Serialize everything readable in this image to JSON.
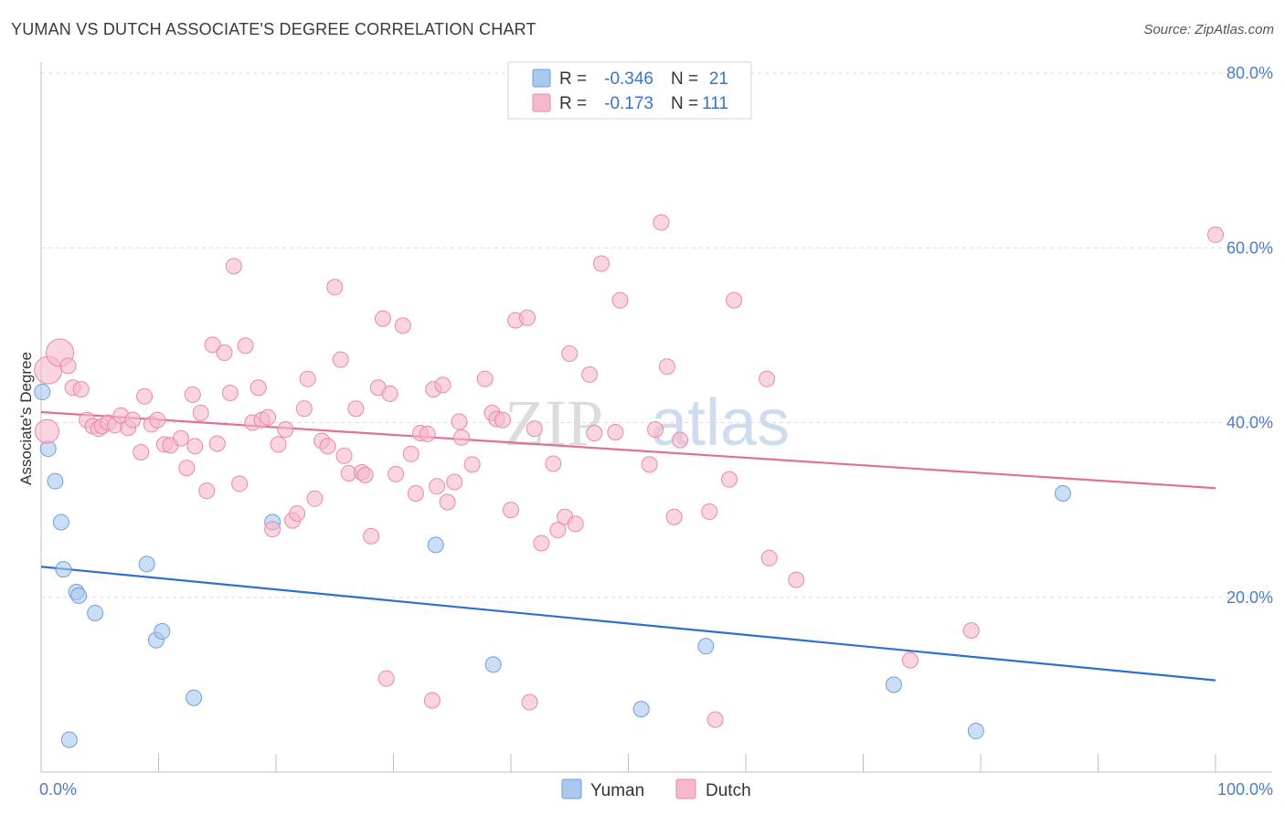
{
  "header": {
    "title": "YUMAN VS DUTCH ASSOCIATE'S DEGREE CORRELATION CHART",
    "source": "Source: ZipAtlas.com"
  },
  "watermark": {
    "part1": "ZIP",
    "part2": "atlas"
  },
  "legend": {
    "rows": [
      {
        "r_label": "R =",
        "r_value": "-0.346",
        "n_label": "N =",
        "n_value": "21",
        "color": "#aac8ef"
      },
      {
        "r_label": "R =",
        "r_value": "-0.173",
        "n_label": "N =",
        "n_value": "111",
        "color": "#f6b8cb"
      }
    ]
  },
  "chart_data": {
    "type": "scatter",
    "title": "YUMAN VS DUTCH ASSOCIATE'S DEGREE CORRELATION CHART",
    "xlabel": "",
    "ylabel": "Associate's Degree",
    "xlim": [
      0,
      100
    ],
    "ylim": [
      0,
      80
    ],
    "x_tick_labels": [
      "0.0%",
      "100.0%"
    ],
    "y_ticks": [
      20,
      40,
      60,
      80
    ],
    "y_tick_labels": [
      "20.0%",
      "40.0%",
      "60.0%",
      "80.0%"
    ],
    "grid": true,
    "legend_position": "top-center",
    "series": [
      {
        "name": "Yuman",
        "color": "#aac8ef",
        "stroke": "#6f9fdc",
        "trend_color": "#2f6fd0",
        "trend": [
          [
            0,
            23.5
          ],
          [
            100,
            10.5
          ]
        ],
        "points": [
          [
            0.1,
            43.5
          ],
          [
            0.6,
            37.0
          ],
          [
            1.2,
            33.3
          ],
          [
            1.7,
            28.6
          ],
          [
            1.9,
            23.2
          ],
          [
            3.0,
            20.6
          ],
          [
            3.2,
            20.2
          ],
          [
            4.6,
            18.2
          ],
          [
            9.0,
            23.8
          ],
          [
            9.8,
            15.1
          ],
          [
            10.3,
            16.1
          ],
          [
            13.0,
            8.5
          ],
          [
            2.4,
            3.7
          ],
          [
            19.7,
            28.6
          ],
          [
            33.6,
            26.0
          ],
          [
            38.5,
            12.3
          ],
          [
            51.1,
            7.2
          ],
          [
            56.6,
            14.4
          ],
          [
            72.6,
            10.0
          ],
          [
            79.6,
            4.7
          ],
          [
            87.0,
            31.9
          ]
        ]
      },
      {
        "name": "Dutch",
        "color": "#f6b8cb",
        "stroke": "#e88aa6",
        "trend_color": "#e07098",
        "trend": [
          [
            0,
            41.2
          ],
          [
            100,
            32.5
          ]
        ],
        "points": [
          [
            0.6,
            46.0
          ],
          [
            1.6,
            48.0
          ],
          [
            2.3,
            46.5
          ],
          [
            2.7,
            44.0
          ],
          [
            3.4,
            43.8
          ],
          [
            0.5,
            39.0
          ],
          [
            3.9,
            40.3
          ],
          [
            4.4,
            39.6
          ],
          [
            4.9,
            39.3
          ],
          [
            5.2,
            39.6
          ],
          [
            5.7,
            40.0
          ],
          [
            6.3,
            39.7
          ],
          [
            6.8,
            40.8
          ],
          [
            7.4,
            39.4
          ],
          [
            7.8,
            40.3
          ],
          [
            8.5,
            36.6
          ],
          [
            8.8,
            43.0
          ],
          [
            9.4,
            39.8
          ],
          [
            9.9,
            40.3
          ],
          [
            10.5,
            37.5
          ],
          [
            11.0,
            37.4
          ],
          [
            11.9,
            38.2
          ],
          [
            12.4,
            34.8
          ],
          [
            12.9,
            43.2
          ],
          [
            13.1,
            37.3
          ],
          [
            13.6,
            41.1
          ],
          [
            14.1,
            32.2
          ],
          [
            14.6,
            48.9
          ],
          [
            15.0,
            37.6
          ],
          [
            15.6,
            48.0
          ],
          [
            16.1,
            43.4
          ],
          [
            16.4,
            57.9
          ],
          [
            16.9,
            33.0
          ],
          [
            17.4,
            48.8
          ],
          [
            18.0,
            40.0
          ],
          [
            18.5,
            44.0
          ],
          [
            18.8,
            40.3
          ],
          [
            19.3,
            40.6
          ],
          [
            19.7,
            27.8
          ],
          [
            20.2,
            37.5
          ],
          [
            20.8,
            39.2
          ],
          [
            21.4,
            28.8
          ],
          [
            21.8,
            29.6
          ],
          [
            22.4,
            41.6
          ],
          [
            22.7,
            45.0
          ],
          [
            23.3,
            31.3
          ],
          [
            23.9,
            37.9
          ],
          [
            24.4,
            37.3
          ],
          [
            25.0,
            55.5
          ],
          [
            25.5,
            47.2
          ],
          [
            25.8,
            36.2
          ],
          [
            26.2,
            34.2
          ],
          [
            26.8,
            41.6
          ],
          [
            27.3,
            34.3
          ],
          [
            27.6,
            34.0
          ],
          [
            28.1,
            27.0
          ],
          [
            28.7,
            44.0
          ],
          [
            29.1,
            51.9
          ],
          [
            29.7,
            43.3
          ],
          [
            30.2,
            34.1
          ],
          [
            30.8,
            51.1
          ],
          [
            31.5,
            36.4
          ],
          [
            31.9,
            31.9
          ],
          [
            32.3,
            38.8
          ],
          [
            32.9,
            38.7
          ],
          [
            33.4,
            43.8
          ],
          [
            33.7,
            32.7
          ],
          [
            34.2,
            44.3
          ],
          [
            34.6,
            30.9
          ],
          [
            35.2,
            33.2
          ],
          [
            35.6,
            40.1
          ],
          [
            35.8,
            38.3
          ],
          [
            36.7,
            35.2
          ],
          [
            37.8,
            45.0
          ],
          [
            38.4,
            41.1
          ],
          [
            38.8,
            40.4
          ],
          [
            39.3,
            40.3
          ],
          [
            40.0,
            30.0
          ],
          [
            40.4,
            51.7
          ],
          [
            41.4,
            52.0
          ],
          [
            42.0,
            39.3
          ],
          [
            42.6,
            26.2
          ],
          [
            43.6,
            35.3
          ],
          [
            44.0,
            27.7
          ],
          [
            44.6,
            29.2
          ],
          [
            45.0,
            47.9
          ],
          [
            45.5,
            28.4
          ],
          [
            46.7,
            45.5
          ],
          [
            47.1,
            38.8
          ],
          [
            47.7,
            58.2
          ],
          [
            48.9,
            38.9
          ],
          [
            49.3,
            54.0
          ],
          [
            51.8,
            35.2
          ],
          [
            52.3,
            39.2
          ],
          [
            52.8,
            62.9
          ],
          [
            53.3,
            46.4
          ],
          [
            53.9,
            29.2
          ],
          [
            54.4,
            38.0
          ],
          [
            56.9,
            29.8
          ],
          [
            57.4,
            6.0
          ],
          [
            58.6,
            33.5
          ],
          [
            59.0,
            54.0
          ],
          [
            61.8,
            45.0
          ],
          [
            62.0,
            24.5
          ],
          [
            64.3,
            22.0
          ],
          [
            29.4,
            10.7
          ],
          [
            33.3,
            8.2
          ],
          [
            74.0,
            12.8
          ],
          [
            79.2,
            16.2
          ],
          [
            100.0,
            61.5
          ],
          [
            41.6,
            8.0
          ]
        ]
      }
    ]
  }
}
